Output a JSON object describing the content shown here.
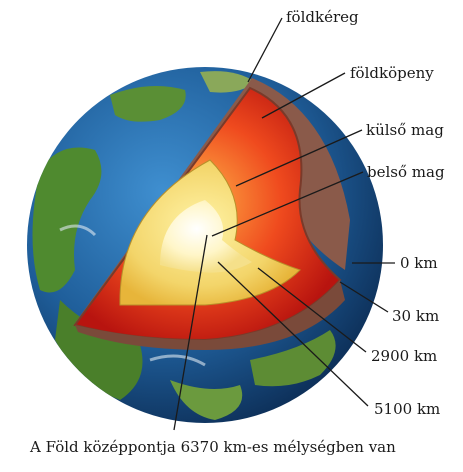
{
  "diagram": {
    "layers": [
      {
        "key": "crust",
        "label": "földkéreg"
      },
      {
        "key": "mantle",
        "label": "földköpeny"
      },
      {
        "key": "outer_core",
        "label": "külső mag"
      },
      {
        "key": "inner_core",
        "label": "belső mag"
      }
    ],
    "depths": [
      "0 km",
      "30 km",
      "2900 km",
      "5100 km"
    ],
    "caption": "A Föld középpontja 6370 km-es mélységben van"
  },
  "colors": {
    "ocean": "#1f5e9a",
    "land": "#4f8a2f",
    "crust": "#8a5a4a",
    "mantle": "#d9261c",
    "outer_core": "#f4c24a",
    "inner_core": "#fff6c8"
  }
}
